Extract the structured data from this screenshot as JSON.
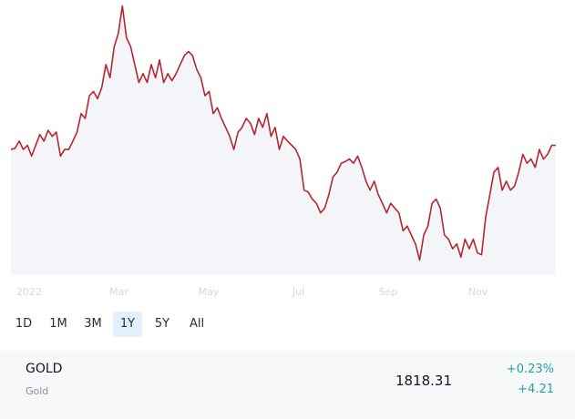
{
  "chart_data": {
    "type": "line",
    "x_labels": [
      "2022",
      "Mar",
      "May",
      "Jul",
      "Sep",
      "Nov"
    ],
    "color": "#b5272d",
    "ylim": [
      1600,
      2060
    ],
    "values": [
      1810,
      1812,
      1824,
      1810,
      1817,
      1799,
      1817,
      1835,
      1824,
      1842,
      1832,
      1839,
      1799,
      1810,
      1810,
      1824,
      1839,
      1870,
      1862,
      1900,
      1907,
      1895,
      1914,
      1952,
      1930,
      1982,
      2004,
      2050,
      1997,
      1982,
      1952,
      1922,
      1937,
      1922,
      1952,
      1930,
      1960,
      1922,
      1937,
      1925,
      1937,
      1952,
      1967,
      1974,
      1967,
      1944,
      1930,
      1900,
      1907,
      1870,
      1880,
      1862,
      1847,
      1832,
      1810,
      1839,
      1847,
      1862,
      1854,
      1835,
      1862,
      1847,
      1870,
      1832,
      1847,
      1810,
      1832,
      1824,
      1817,
      1810,
      1794,
      1742,
      1739,
      1727,
      1720,
      1704,
      1712,
      1734,
      1764,
      1772,
      1787,
      1790,
      1794,
      1787,
      1799,
      1780,
      1757,
      1742,
      1757,
      1734,
      1720,
      1704,
      1720,
      1712,
      1704,
      1674,
      1682,
      1667,
      1652,
      1625,
      1667,
      1682,
      1720,
      1727,
      1712,
      1667,
      1660,
      1644,
      1652,
      1630,
      1660,
      1644,
      1660,
      1637,
      1634,
      1697,
      1734,
      1772,
      1780,
      1742,
      1757,
      1742,
      1749,
      1772,
      1802,
      1787,
      1794,
      1780,
      1810,
      1794,
      1802,
      1817,
      1817
    ]
  },
  "range_buttons": [
    "1D",
    "1M",
    "3M",
    "1Y",
    "5Y",
    "All"
  ],
  "selected_range_index": 3,
  "symbol": {
    "ticker": "GOLD",
    "name": "Gold",
    "price": 1818.31,
    "change_percent": "+0.23%",
    "change": "+4.21"
  }
}
